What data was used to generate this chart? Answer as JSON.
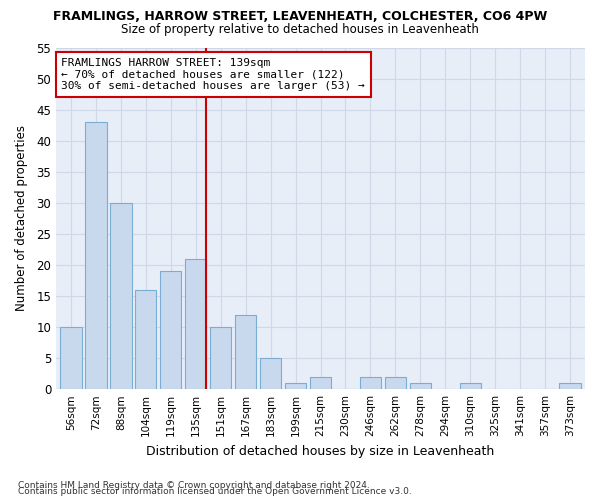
{
  "title": "FRAMLINGS, HARROW STREET, LEAVENHEATH, COLCHESTER, CO6 4PW",
  "subtitle": "Size of property relative to detached houses in Leavenheath",
  "xlabel": "Distribution of detached houses by size in Leavenheath",
  "ylabel": "Number of detached properties",
  "categories": [
    "56sqm",
    "72sqm",
    "88sqm",
    "104sqm",
    "119sqm",
    "135sqm",
    "151sqm",
    "167sqm",
    "183sqm",
    "199sqm",
    "215sqm",
    "230sqm",
    "246sqm",
    "262sqm",
    "278sqm",
    "294sqm",
    "310sqm",
    "325sqm",
    "341sqm",
    "357sqm",
    "373sqm"
  ],
  "values": [
    10,
    43,
    30,
    16,
    19,
    21,
    10,
    12,
    5,
    1,
    2,
    0,
    2,
    2,
    1,
    0,
    1,
    0,
    0,
    0,
    1
  ],
  "bar_color": "#c8d9ee",
  "bar_edge_color": "#7aadd4",
  "grid_color": "#d0d8e8",
  "marker_bar_index": 5,
  "marker_line_color": "#cc0000",
  "annotation_text": "FRAMLINGS HARROW STREET: 139sqm\n← 70% of detached houses are smaller (122)\n30% of semi-detached houses are larger (53) →",
  "annotation_box_color": "#ffffff",
  "annotation_box_edge": "#cc0000",
  "ylim": [
    0,
    55
  ],
  "yticks": [
    0,
    5,
    10,
    15,
    20,
    25,
    30,
    35,
    40,
    45,
    50,
    55
  ],
  "footnote1": "Contains HM Land Registry data © Crown copyright and database right 2024.",
  "footnote2": "Contains public sector information licensed under the Open Government Licence v3.0.",
  "bg_color": "#ffffff",
  "plot_bg_color": "#e8eef8"
}
